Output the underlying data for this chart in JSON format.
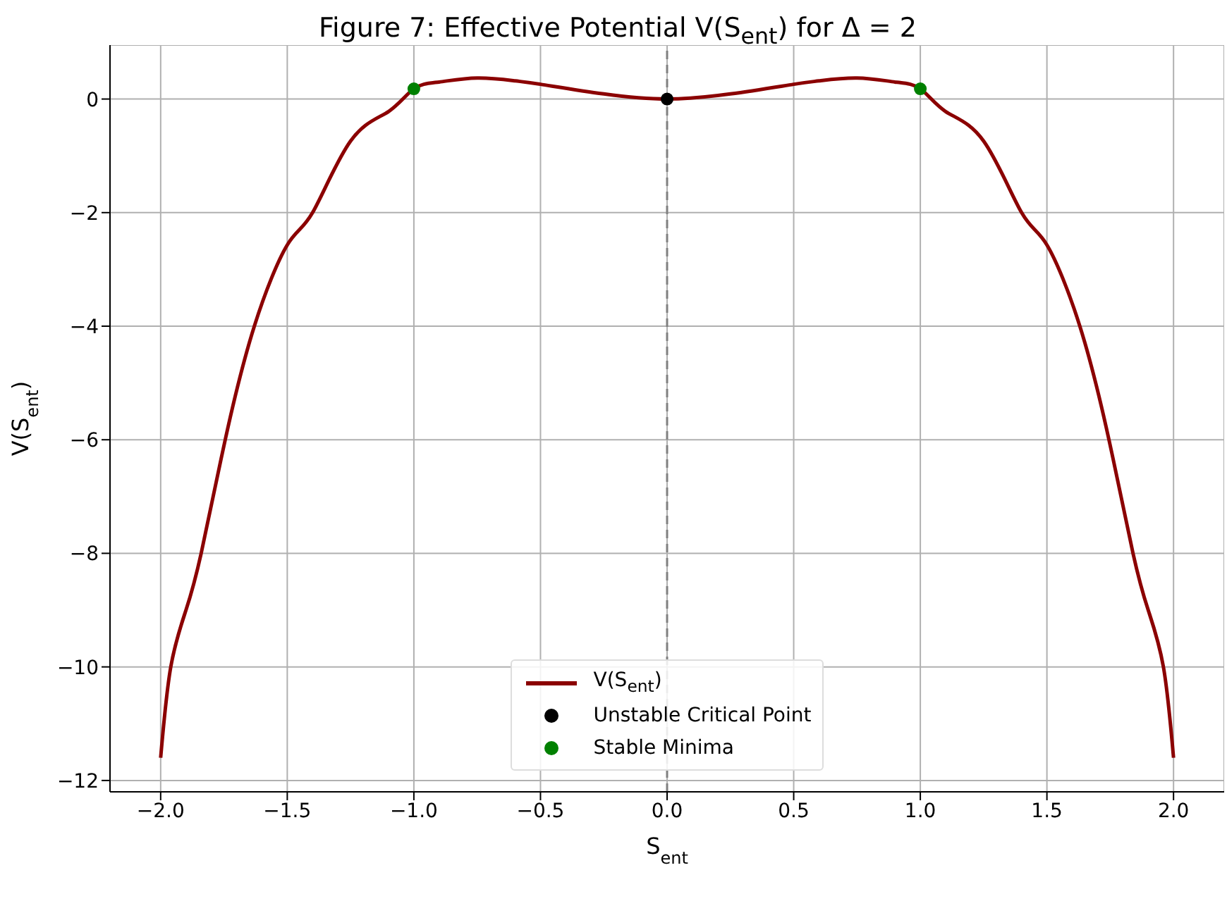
{
  "chart_data": {
    "type": "line",
    "title": "Figure 7: Effective Potential V(S$_{ent}$) for Δ = 2",
    "xlabel": "S$_{ent}$",
    "ylabel": "V(S$_{ent}$)",
    "xlim": [
      -2.2,
      2.2
    ],
    "ylim": [
      -12.2,
      0.95
    ],
    "xticks": [
      {
        "value": -2,
        "label": "−2.0"
      },
      {
        "value": -1.5,
        "label": "−1.5"
      },
      {
        "value": -1,
        "label": "−1.0"
      },
      {
        "value": -0.5,
        "label": "−0.5"
      },
      {
        "value": 0,
        "label": "0.0"
      },
      {
        "value": 0.5,
        "label": "0.5"
      },
      {
        "value": 1,
        "label": "1.0"
      },
      {
        "value": 1.5,
        "label": "1.5"
      },
      {
        "value": 2,
        "label": "2.0"
      }
    ],
    "yticks": [
      {
        "value": -12,
        "label": "−12"
      },
      {
        "value": -10,
        "label": "−10"
      },
      {
        "value": -8,
        "label": "−8"
      },
      {
        "value": -6,
        "label": "−6"
      },
      {
        "value": -4,
        "label": "−4"
      },
      {
        "value": -2,
        "label": "−2"
      },
      0
    ],
    "grid": true,
    "legend": "bottom",
    "ref_lines": [
      {
        "axis": "x",
        "value": 0,
        "color": "#808080",
        "line_style": "dashed"
      }
    ],
    "series": [
      {
        "name": "V(S$_{ent}$)",
        "color": "#8b0000",
        "x": [
          -2,
          -1.96,
          -1.9,
          -1.84,
          -1.745,
          -1.63,
          -1.5,
          -1.4,
          -1.25,
          -1.1,
          -1,
          -0.9,
          -0.75,
          -0.6,
          -0.5,
          -0.25,
          0,
          0.25,
          0.5,
          0.6,
          0.75,
          0.9,
          1,
          1.1,
          1.25,
          1.4,
          1.5,
          1.63,
          1.745,
          1.84,
          1.9,
          1.96,
          2
        ],
        "values": [
          -11.6,
          -10,
          -9,
          -8,
          -6,
          -4,
          -2.57,
          -2,
          -0.74,
          -0.22,
          0.18,
          0.3,
          0.37,
          0.32,
          0.26,
          0.09,
          0,
          0.09,
          0.26,
          0.32,
          0.37,
          0.3,
          0.18,
          -0.22,
          -0.74,
          -2,
          -2.57,
          -4,
          -6,
          -8,
          -9,
          -10,
          -11.6
        ]
      },
      {
        "type": "scatter",
        "name": "Unstable Critical Point",
        "color": "#000000",
        "marker": "circle",
        "x": [
          0
        ],
        "values": [
          0
        ]
      },
      {
        "type": "scatter",
        "name": "Stable Minima",
        "color": "#008000",
        "marker": "circle",
        "x": [
          -1,
          1
        ],
        "values": [
          0.18,
          0.18
        ]
      }
    ]
  }
}
